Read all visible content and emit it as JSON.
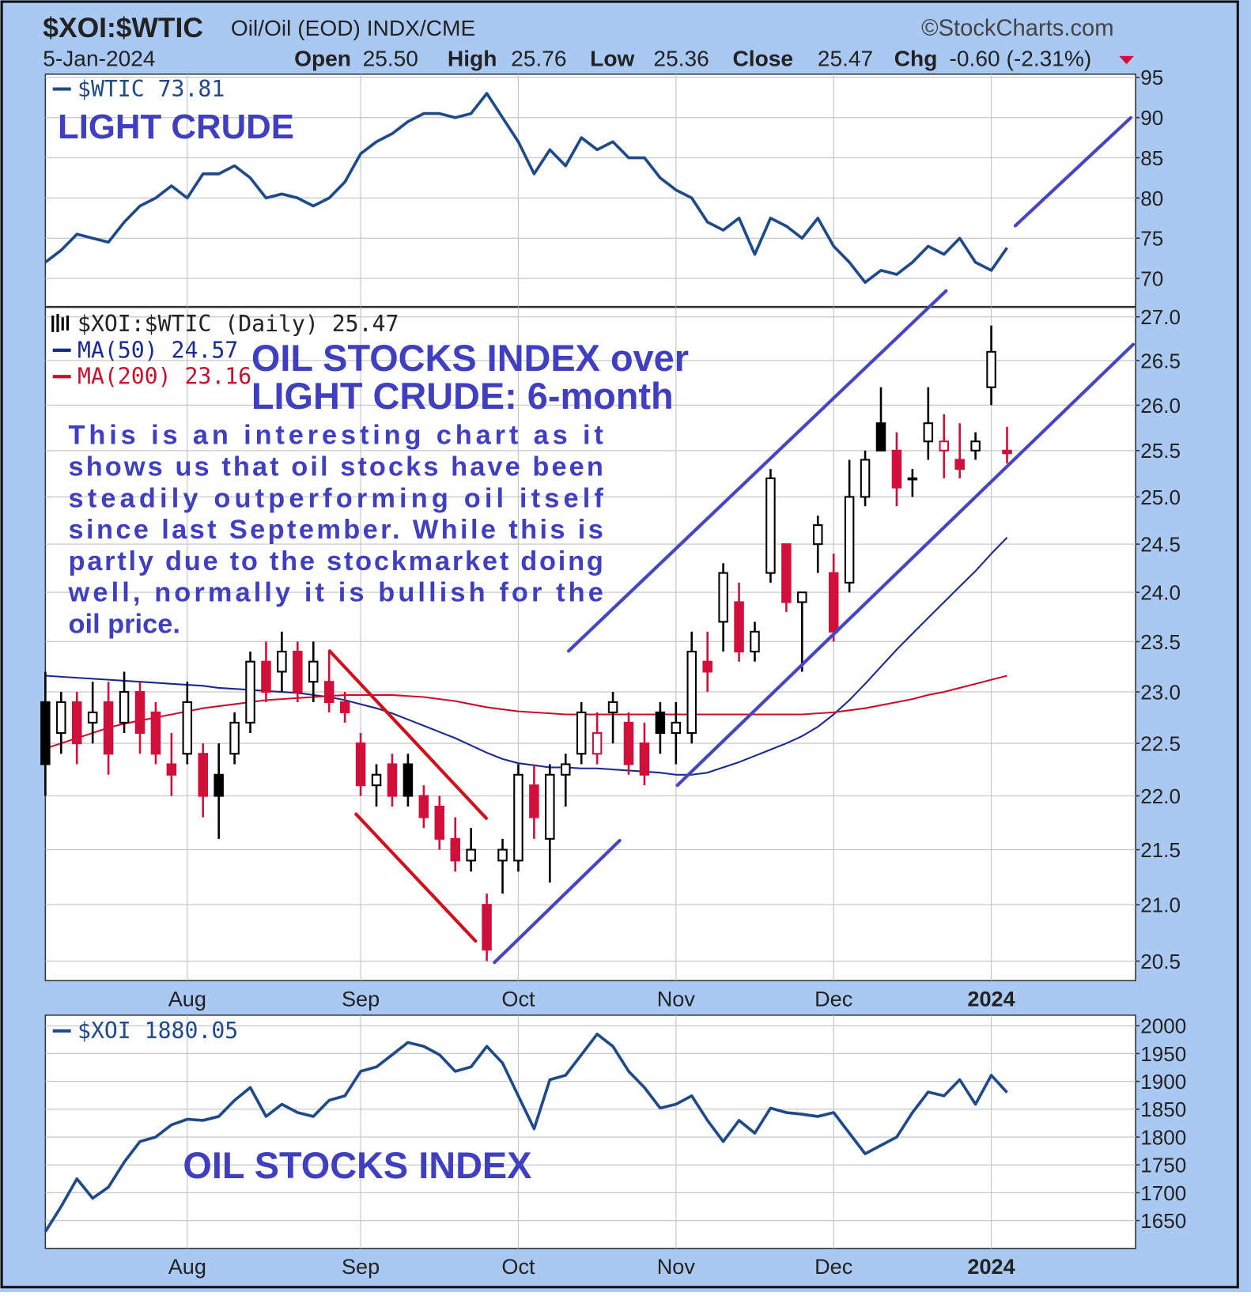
{
  "header": {
    "symbol": "$XOI:$WTIC",
    "description": "Oil/Oil (EOD) INDX/CME",
    "source": "©StockCharts.com",
    "date": "5-Jan-2024",
    "quote": [
      {
        "label": "Open",
        "value": "25.50"
      },
      {
        "label": "High",
        "value": "25.76"
      },
      {
        "label": "Low",
        "value": "25.36"
      },
      {
        "label": "Close",
        "value": "25.47"
      },
      {
        "label": "Chg",
        "value": "-0.60 (-2.31%)"
      }
    ]
  },
  "chart_data": [
    {
      "type": "line",
      "annotations": [
        "LIGHT CRUDE"
      ],
      "series": [
        {
          "name": "$WTIC 73.81",
          "color": "#1f4a8a",
          "values": [
            72,
            73.5,
            75.5,
            75,
            74.5,
            77,
            79,
            80,
            81.5,
            80,
            83,
            83,
            84,
            82.5,
            80,
            80.5,
            80,
            79,
            80,
            82,
            85.5,
            87,
            88,
            89.5,
            90.5,
            90.5,
            90,
            90.5,
            93,
            90,
            87,
            83,
            86,
            84,
            87.5,
            86,
            87,
            85,
            85,
            82.5,
            81,
            80,
            77,
            76,
            77.5,
            73,
            77.5,
            76.5,
            75,
            77.5,
            74,
            72,
            69.5,
            71,
            70.5,
            72,
            74,
            73,
            75,
            72,
            71,
            73.81
          ]
        }
      ],
      "ylim": [
        66.5,
        95.4
      ],
      "yticks": [
        70,
        75,
        80,
        85,
        90,
        95
      ],
      "grid": true
    },
    {
      "type": "candlestick",
      "log": true,
      "up_color": "#000000",
      "down_color": "#d0103a",
      "annotations": [
        "OIL STOCKS INDEX over",
        "LIGHT CRUDE: 6-month"
      ],
      "commentary": [
        "This is an interesting chart as it",
        "shows us that oil stocks have been",
        "steadily outperforming oil itself",
        "since last September. While this is",
        "partly due to the stockmarket doing",
        "well, normally it is bullish for the",
        "oil price."
      ],
      "categories": [
        null,
        null,
        null,
        null,
        null,
        null,
        null,
        null,
        null,
        "Aug",
        null,
        null,
        null,
        null,
        null,
        null,
        null,
        null,
        null,
        null,
        "Sep",
        null,
        null,
        null,
        null,
        null,
        null,
        null,
        null,
        null,
        "Oct",
        null,
        null,
        null,
        null,
        null,
        null,
        null,
        null,
        null,
        "Nov",
        null,
        null,
        null,
        null,
        null,
        null,
        null,
        null,
        null,
        "Dec",
        null,
        null,
        null,
        null,
        null,
        null,
        null,
        null,
        null,
        "2024",
        null
      ],
      "series": [
        {
          "name": "$XOI:$WTIC (Daily) 25.47",
          "open": [
            22.9,
            22.6,
            22.9,
            22.7,
            22.9,
            22.7,
            23.0,
            22.8,
            22.3,
            22.4,
            22.4,
            22.2,
            22.4,
            22.7,
            23.3,
            23.2,
            23.4,
            23.1,
            23.1,
            22.9,
            22.5,
            22.1,
            22.3,
            22.3,
            22.0,
            21.9,
            21.6,
            21.4,
            21.0,
            21.4,
            21.4,
            22.1,
            21.6,
            22.2,
            22.4,
            22.4,
            22.8,
            22.7,
            22.5,
            22.8,
            22.6,
            22.6,
            23.3,
            23.7,
            23.9,
            23.4,
            24.2,
            24.5,
            23.9,
            24.5,
            24.2,
            24.1,
            25.0,
            25.8,
            25.5,
            25.2,
            25.6,
            25.5,
            25.4,
            25.5,
            26.2,
            25.5
          ],
          "high": [
            23.2,
            23.0,
            23.0,
            23.1,
            23.1,
            23.2,
            23.1,
            22.9,
            22.6,
            23.1,
            22.5,
            22.5,
            22.8,
            23.4,
            23.5,
            23.6,
            23.5,
            23.5,
            23.4,
            23.0,
            22.6,
            22.3,
            22.4,
            22.4,
            22.1,
            22.0,
            21.8,
            21.7,
            21.1,
            21.6,
            22.3,
            22.3,
            22.3,
            22.4,
            22.9,
            22.8,
            23.0,
            22.8,
            22.7,
            22.9,
            22.9,
            23.6,
            23.6,
            24.3,
            24.1,
            23.7,
            25.3,
            24.5,
            24.0,
            24.8,
            24.4,
            25.4,
            25.5,
            26.2,
            25.7,
            25.3,
            26.2,
            25.9,
            25.8,
            25.7,
            26.9,
            25.76
          ],
          "low": [
            22.0,
            22.4,
            22.3,
            22.5,
            22.2,
            22.6,
            22.4,
            22.3,
            22.0,
            22.3,
            21.8,
            21.6,
            22.3,
            22.6,
            22.9,
            23.0,
            22.9,
            22.9,
            22.8,
            22.7,
            22.0,
            21.9,
            21.9,
            21.9,
            21.7,
            21.5,
            21.3,
            21.3,
            20.5,
            21.1,
            21.3,
            21.6,
            21.2,
            21.9,
            22.3,
            22.3,
            22.5,
            22.2,
            22.1,
            22.4,
            22.3,
            22.5,
            23.0,
            23.4,
            23.3,
            23.3,
            24.1,
            23.8,
            23.2,
            24.2,
            23.5,
            24.0,
            24.9,
            25.5,
            24.9,
            25.0,
            25.4,
            25.2,
            25.2,
            25.4,
            26.0,
            25.36
          ],
          "close": [
            22.3,
            22.9,
            22.5,
            22.8,
            22.4,
            23.0,
            22.6,
            22.4,
            22.2,
            22.9,
            22.0,
            22.0,
            22.7,
            23.3,
            23.0,
            23.4,
            23.0,
            23.3,
            22.9,
            22.8,
            22.1,
            22.2,
            22.0,
            22.0,
            21.8,
            21.6,
            21.4,
            21.5,
            20.6,
            21.5,
            22.2,
            21.8,
            22.2,
            22.3,
            22.8,
            22.6,
            22.9,
            22.3,
            22.2,
            22.6,
            22.7,
            23.4,
            23.2,
            24.2,
            23.4,
            23.6,
            25.2,
            23.9,
            24.0,
            24.7,
            23.6,
            25.0,
            25.4,
            25.5,
            25.1,
            25.2,
            25.8,
            25.6,
            25.3,
            25.6,
            26.6,
            25.47
          ]
        },
        {
          "name": "MA(50) 24.57",
          "color": "#1a2a8c",
          "values": [
            23.16,
            23.15,
            23.14,
            23.13,
            23.12,
            23.11,
            23.1,
            23.09,
            23.08,
            23.07,
            23.06,
            23.04,
            23.03,
            23.02,
            23.01,
            23.0,
            22.99,
            22.97,
            22.95,
            22.92,
            22.88,
            22.84,
            22.79,
            22.73,
            22.67,
            22.61,
            22.55,
            22.48,
            22.41,
            22.35,
            22.31,
            22.29,
            22.27,
            22.27,
            22.26,
            22.26,
            22.25,
            22.24,
            22.23,
            22.22,
            22.2,
            22.2,
            22.22,
            22.27,
            22.32,
            22.38,
            22.44,
            22.5,
            22.57,
            22.66,
            22.78,
            22.92,
            23.08,
            23.25,
            23.42,
            23.58,
            23.74,
            23.9,
            24.06,
            24.22,
            24.4,
            24.57
          ]
        },
        {
          "name": "MA(200) 23.16",
          "color": "#c8102e",
          "values": [
            22.45,
            22.5,
            22.55,
            22.6,
            22.65,
            22.69,
            22.72,
            22.75,
            22.78,
            22.81,
            22.84,
            22.86,
            22.88,
            22.9,
            22.92,
            22.93,
            22.94,
            22.95,
            22.96,
            22.97,
            22.97,
            22.97,
            22.97,
            22.96,
            22.95,
            22.93,
            22.91,
            22.88,
            22.85,
            22.83,
            22.81,
            22.8,
            22.79,
            22.78,
            22.78,
            22.78,
            22.78,
            22.78,
            22.78,
            22.78,
            22.78,
            22.78,
            22.78,
            22.78,
            22.78,
            22.78,
            22.78,
            22.78,
            22.78,
            22.79,
            22.8,
            22.82,
            22.84,
            22.87,
            22.9,
            22.93,
            22.97,
            23.0,
            23.04,
            23.08,
            23.12,
            23.16
          ]
        }
      ],
      "ylim": [
        20.33,
        27.11
      ],
      "yticks": [
        {
          "value": 27,
          "label": "27.0"
        },
        26.5,
        {
          "value": 26,
          "label": "26.0"
        },
        25.5,
        {
          "value": 25,
          "label": "25.0"
        },
        24.5,
        {
          "value": 24,
          "label": "24.0"
        },
        23.5,
        {
          "value": 23,
          "label": "23.0"
        },
        22.5,
        {
          "value": 22,
          "label": "22.0"
        },
        21.5,
        {
          "value": 21,
          "label": "21.0"
        },
        20.5
      ],
      "grid": true
    },
    {
      "type": "line",
      "annotations": [
        "OIL STOCKS INDEX"
      ],
      "categories": [
        null,
        null,
        null,
        null,
        null,
        null,
        null,
        null,
        null,
        "Aug",
        null,
        null,
        null,
        null,
        null,
        null,
        null,
        null,
        null,
        null,
        "Sep",
        null,
        null,
        null,
        null,
        null,
        null,
        null,
        null,
        null,
        "Oct",
        null,
        null,
        null,
        null,
        null,
        null,
        null,
        null,
        null,
        "Nov",
        null,
        null,
        null,
        null,
        null,
        null,
        null,
        null,
        null,
        "Dec",
        null,
        null,
        null,
        null,
        null,
        null,
        null,
        null,
        null,
        "2024",
        null
      ],
      "series": [
        {
          "name": "$XOI 1880.05",
          "color": "#1f4a8a",
          "values": [
            1630,
            1675,
            1725,
            1690,
            1710,
            1755,
            1792,
            1800,
            1822,
            1832,
            1830,
            1837,
            1866,
            1889,
            1837,
            1859,
            1844,
            1837,
            1866,
            1874,
            1918,
            1926,
            1948,
            1970,
            1963,
            1948,
            1918,
            1926,
            1963,
            1933,
            1874,
            1815,
            1903,
            1911,
            1948,
            1985,
            1963,
            1918,
            1889,
            1852,
            1859,
            1874,
            1830,
            1792,
            1830,
            1807,
            1852,
            1844,
            1841,
            1837,
            1844,
            1807,
            1770,
            1785,
            1800,
            1844,
            1881,
            1874,
            1903,
            1859,
            1911,
            1880.05
          ]
        }
      ],
      "ylim": [
        1600,
        2019
      ],
      "yticks": [
        1650,
        1700,
        1750,
        1800,
        1850,
        1900,
        1950,
        2000
      ],
      "grid": true
    }
  ]
}
